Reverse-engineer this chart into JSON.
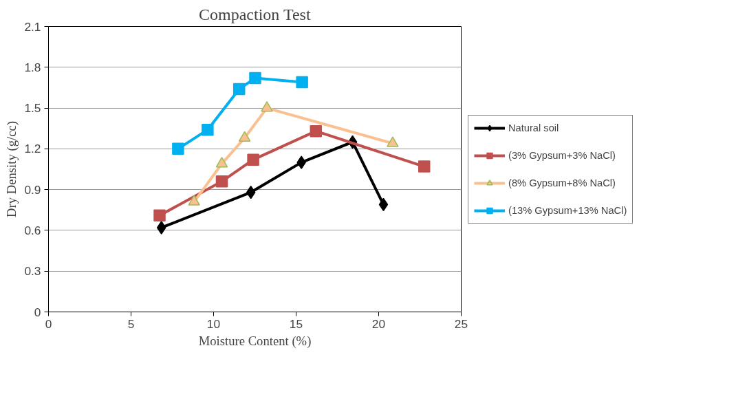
{
  "chart_data": {
    "type": "line",
    "title": "Compaction Test",
    "xlabel": "Moisture Content (%)",
    "ylabel": "Dry Density (g/cc)",
    "xlim": [
      0,
      25
    ],
    "xticks": [
      0,
      5,
      10,
      15,
      20,
      25
    ],
    "ylim": [
      0,
      2.1
    ],
    "yticks": [
      0,
      0.3,
      0.6,
      0.9,
      1.2,
      1.5,
      1.8,
      2.1
    ],
    "grid": "y",
    "legend": "right",
    "series": [
      {
        "name": "Natural soil",
        "color": "#000000",
        "marker": "diamond",
        "x": [
          6.84,
          12.26,
          15.32,
          18.42,
          20.29
        ],
        "values": [
          0.62,
          0.88,
          1.1,
          1.25,
          0.79
        ]
      },
      {
        "name": "(3% Gypsum+3% NaCl)",
        "color": "#c0504d",
        "marker": "square",
        "x": [
          6.73,
          10.5,
          12.4,
          16.2,
          22.76
        ],
        "values": [
          0.71,
          0.96,
          1.12,
          1.33,
          1.07
        ]
      },
      {
        "name": "(8% Gypsum+8% NaCl)",
        "color": "#fac090",
        "marker": "triangle",
        "x": [
          8.82,
          10.5,
          11.88,
          13.23,
          20.85
        ],
        "values": [
          0.81,
          1.09,
          1.28,
          1.5,
          1.24
        ]
      },
      {
        "name": "(13% Gypsum+13% NaCl)",
        "color": "#00b0f0",
        "marker": "square",
        "x": [
          7.85,
          9.64,
          11.55,
          12.52,
          15.36
        ],
        "values": [
          1.2,
          1.34,
          1.64,
          1.72,
          1.69
        ]
      }
    ]
  }
}
